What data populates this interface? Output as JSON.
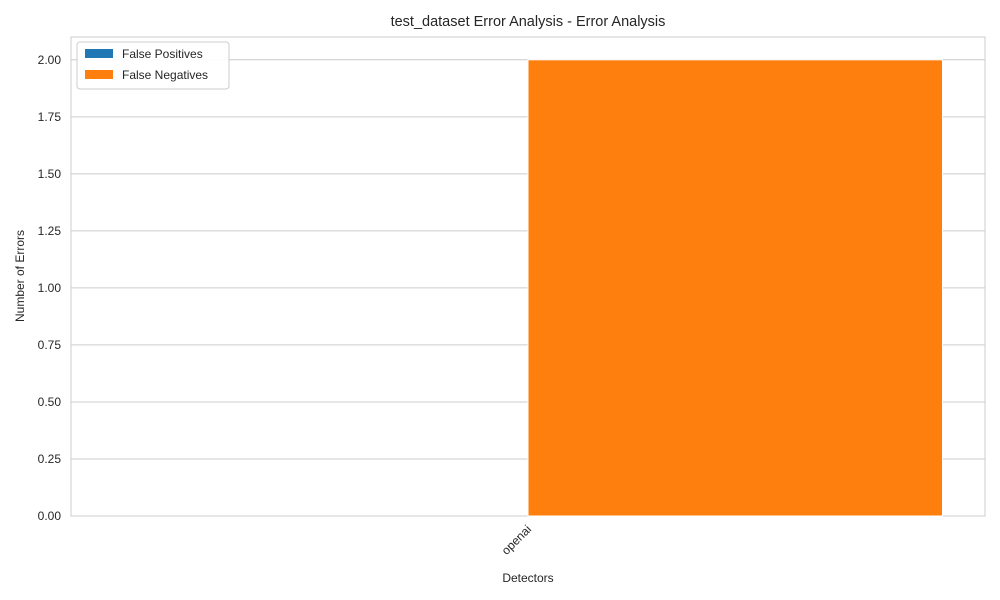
{
  "chart_data": {
    "type": "bar",
    "title": "test_dataset Error Analysis - Error Analysis",
    "xlabel": "Detectors",
    "ylabel": "Number of Errors",
    "categories": [
      "openai"
    ],
    "series": [
      {
        "name": "False Positives",
        "values": [
          0
        ],
        "color": "#1f77b4"
      },
      {
        "name": "False Negatives",
        "values": [
          2
        ],
        "color": "#ff7f0e"
      }
    ],
    "ylim": [
      0,
      2.1
    ],
    "yticks": [
      "0.00",
      "0.25",
      "0.50",
      "0.75",
      "1.00",
      "1.25",
      "1.50",
      "1.75",
      "2.00"
    ],
    "grid": true,
    "legend_position": "top-left"
  }
}
